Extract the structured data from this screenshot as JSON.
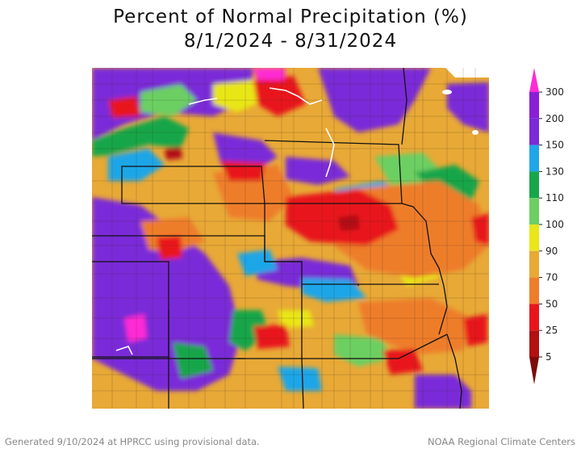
{
  "title_line1": "Percent of Normal Precipitation (%)",
  "title_line2": "8/1/2024 - 8/31/2024",
  "legend": {
    "ticks": [
      "300",
      "200",
      "150",
      "130",
      "110",
      "100",
      "90",
      "70",
      "50",
      "25",
      "5"
    ],
    "bands": [
      {
        "from": "300",
        "to": "200",
        "color": "#8a1fd6"
      },
      {
        "from": "200",
        "to": "150",
        "color": "#7a2ad8"
      },
      {
        "from": "150",
        "to": "130",
        "color": "#1fa6e8"
      },
      {
        "from": "130",
        "to": "110",
        "color": "#17a64a"
      },
      {
        "from": "110",
        "to": "100",
        "color": "#6ccf62"
      },
      {
        "from": "100",
        "to": "90",
        "color": "#e9e619"
      },
      {
        "from": "90",
        "to": "70",
        "color": "#e8a936"
      },
      {
        "from": "70",
        "to": "50",
        "color": "#ee7d2a"
      },
      {
        "from": "50",
        "to": "25",
        "color": "#e8161a"
      },
      {
        "from": "25",
        "to": "5",
        "color": "#b21012"
      }
    ],
    "top_arrow_color": "#ff2bd4",
    "bottom_arrow_color": "#7d0c0c"
  },
  "footer_left": "Generated 9/10/2024 at HPRCC using provisional data.",
  "footer_right": "NOAA Regional Climate Centers"
}
